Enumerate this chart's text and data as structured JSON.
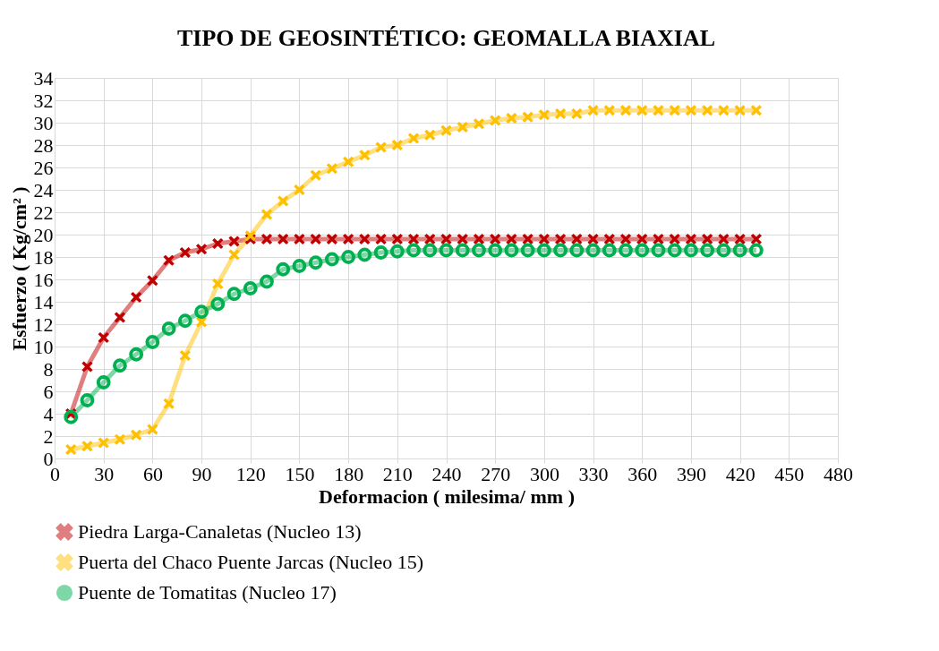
{
  "chart_data": {
    "type": "line",
    "title": "TIPO DE GEOSINTÉTICO:  GEOMALLA  BIAXIAL",
    "xlabel": "Deformacion ( milesima/ mm )",
    "ylabel": "Esfuerzo  ( Kg/cm² )",
    "x": [
      10,
      20,
      30,
      40,
      50,
      60,
      70,
      80,
      90,
      100,
      110,
      120,
      130,
      140,
      150,
      160,
      170,
      180,
      190,
      200,
      210,
      220,
      230,
      240,
      250,
      260,
      270,
      280,
      290,
      300,
      310,
      320,
      330,
      340,
      350,
      360,
      370,
      380,
      390,
      400,
      410,
      420,
      430
    ],
    "series": [
      {
        "name": "Piedra Larga-Canaletas (Nucleo 13)",
        "color": "#c00000",
        "marker": "cross",
        "values": [
          4,
          8.2,
          10.8,
          12.6,
          14.4,
          15.9,
          17.7,
          18.4,
          18.7,
          19.2,
          19.4,
          19.6,
          19.6,
          19.6,
          19.6,
          19.6,
          19.6,
          19.6,
          19.6,
          19.6,
          19.6,
          19.6,
          19.6,
          19.6,
          19.6,
          19.6,
          19.6,
          19.6,
          19.6,
          19.6,
          19.6,
          19.6,
          19.6,
          19.6,
          19.6,
          19.6,
          19.6,
          19.6,
          19.6,
          19.6,
          19.6,
          19.6,
          19.6
        ]
      },
      {
        "name": "Puerta del Chaco Puente Jarcas (Nucleo 15)",
        "color": "#ffc000",
        "marker": "cross",
        "values": [
          0.8,
          1.1,
          1.4,
          1.7,
          2.1,
          2.6,
          4.9,
          9.2,
          12.2,
          15.6,
          18.2,
          19.9,
          21.8,
          23,
          24,
          25.3,
          25.9,
          26.5,
          27.1,
          27.8,
          28,
          28.6,
          28.9,
          29.3,
          29.6,
          29.9,
          30.2,
          30.4,
          30.5,
          30.7,
          30.8,
          30.8,
          31.1,
          31.1,
          31.1,
          31.1,
          31.1,
          31.1,
          31.1,
          31.1,
          31.1,
          31.1,
          31.1
        ]
      },
      {
        "name": "Puente de Tomatitas (Nucleo 17)",
        "color": "#00b050",
        "marker": "circle",
        "values": [
          3.7,
          5.2,
          6.8,
          8.3,
          9.3,
          10.4,
          11.6,
          12.3,
          13.1,
          13.8,
          14.7,
          15.2,
          15.8,
          16.9,
          17.2,
          17.5,
          17.8,
          18.0,
          18.2,
          18.4,
          18.5,
          18.6,
          18.6,
          18.6,
          18.6,
          18.6,
          18.6,
          18.6,
          18.6,
          18.6,
          18.6,
          18.6,
          18.6,
          18.6,
          18.6,
          18.6,
          18.6,
          18.6,
          18.6,
          18.6,
          18.6,
          18.6,
          18.6
        ]
      }
    ],
    "xlim": [
      0,
      480
    ],
    "xticks": [
      0,
      30,
      60,
      90,
      120,
      150,
      180,
      210,
      240,
      270,
      300,
      330,
      360,
      390,
      420,
      450,
      480
    ],
    "ylim": [
      0,
      34
    ],
    "yticks": [
      0,
      2,
      4,
      6,
      8,
      10,
      12,
      14,
      16,
      18,
      20,
      22,
      24,
      26,
      28,
      30,
      32,
      34
    ],
    "grid": true,
    "legend": "bottom",
    "line_style": "solid"
  }
}
